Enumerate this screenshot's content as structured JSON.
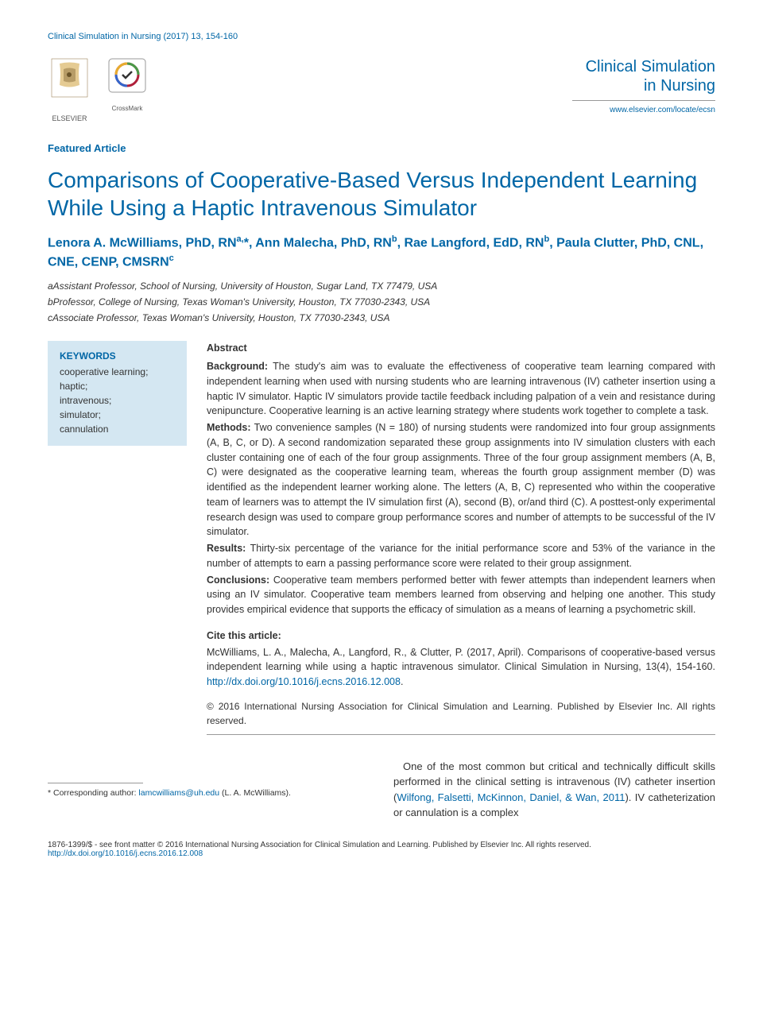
{
  "header_citation": "Clinical Simulation in Nursing (2017) 13, 154-160",
  "journal": {
    "name_line1": "Clinical Simulation",
    "name_line2": "in Nursing",
    "link": "www.elsevier.com/locate/ecsn"
  },
  "elsevier_label": "ELSEVIER",
  "crossmark_label": "CrossMark",
  "article_type": "Featured Article",
  "title": "Comparisons of Cooperative-Based Versus Independent Learning While Using a Haptic Intravenous Simulator",
  "authors_html": "Lenora A. McWilliams, PhD, RN<sup>a,</sup>*, Ann Malecha, PhD, RN<sup>b</sup>, Rae Langford, EdD, RN<sup>b</sup>, Paula Clutter, PhD, CNL, CNE, CENP, CMSRN<sup>c</sup>",
  "affiliations": {
    "a": "aAssistant Professor, School of Nursing, University of Houston, Sugar Land, TX 77479, USA",
    "b": "bProfessor, College of Nursing, Texas Woman's University, Houston, TX 77030-2343, USA",
    "c": "cAssociate Professor, Texas Woman's University, Houston, TX 77030-2343, USA"
  },
  "keywords": {
    "heading": "KEYWORDS",
    "items": [
      "cooperative learning;",
      "haptic;",
      "intravenous;",
      "simulator;",
      "cannulation"
    ]
  },
  "abstract": {
    "heading": "Abstract",
    "background_label": "Background:",
    "background": "The study's aim was to evaluate the effectiveness of cooperative team learning compared with independent learning when used with nursing students who are learning intravenous (IV) catheter insertion using a haptic IV simulator. Haptic IV simulators provide tactile feedback including palpation of a vein and resistance during venipuncture. Cooperative learning is an active learning strategy where students work together to complete a task.",
    "methods_label": "Methods:",
    "methods": "Two convenience samples (N = 180) of nursing students were randomized into four group assignments (A, B, C, or D). A second randomization separated these group assignments into IV simulation clusters with each cluster containing one of each of the four group assignments. Three of the four group assignment members (A, B, C) were designated as the cooperative learning team, whereas the fourth group assignment member (D) was identified as the independent learner working alone. The letters (A, B, C) represented who within the cooperative team of learners was to attempt the IV simulation first (A), second (B), or/and third (C). A posttest-only experimental research design was used to compare group performance scores and number of attempts to be successful of the IV simulator.",
    "results_label": "Results:",
    "results": "Thirty-six percentage of the variance for the initial performance score and 53% of the variance in the number of attempts to earn a passing performance score were related to their group assignment.",
    "conclusions_label": "Conclusions:",
    "conclusions": "Cooperative team members performed better with fewer attempts than independent learners when using an IV simulator. Cooperative team members learned from observing and helping one another. This study provides empirical evidence that supports the efficacy of simulation as a means of learning a psychometric skill."
  },
  "cite": {
    "heading": "Cite this article:",
    "text": "McWilliams, L. A., Malecha, A., Langford, R., & Clutter, P. (2017, April). Comparisons of cooperative-based versus independent learning while using a haptic intravenous simulator. Clinical Simulation in Nursing, 13(4), 154-160. ",
    "doi": "http://dx.doi.org/10.1016/j.ecns.2016.12.008",
    "period": "."
  },
  "copyright": "© 2016 International Nursing Association for Clinical Simulation and Learning. Published by Elsevier Inc. All rights reserved.",
  "body": {
    "para_pre": "One of the most common but critical and technically difficult skills performed in the clinical setting is intravenous (IV) catheter insertion (",
    "ref": "Wilfong, Falsetti, McKinnon, Daniel, & Wan, 2011",
    "para_post": "). IV catheterization or cannulation is a complex"
  },
  "footnote": {
    "label": "* Corresponding author:",
    "email": "lamcwilliams@uh.edu",
    "name": "(L. A. McWilliams)."
  },
  "footer": {
    "line1": "1876-1399/$ - see front matter © 2016 International Nursing Association for Clinical Simulation and Learning. Published by Elsevier Inc. All rights reserved.",
    "doi": "http://dx.doi.org/10.1016/j.ecns.2016.12.008"
  },
  "colors": {
    "primary": "#0066a6",
    "keywords_bg": "#d4e7f2",
    "text": "#333333",
    "divider": "#999999"
  }
}
